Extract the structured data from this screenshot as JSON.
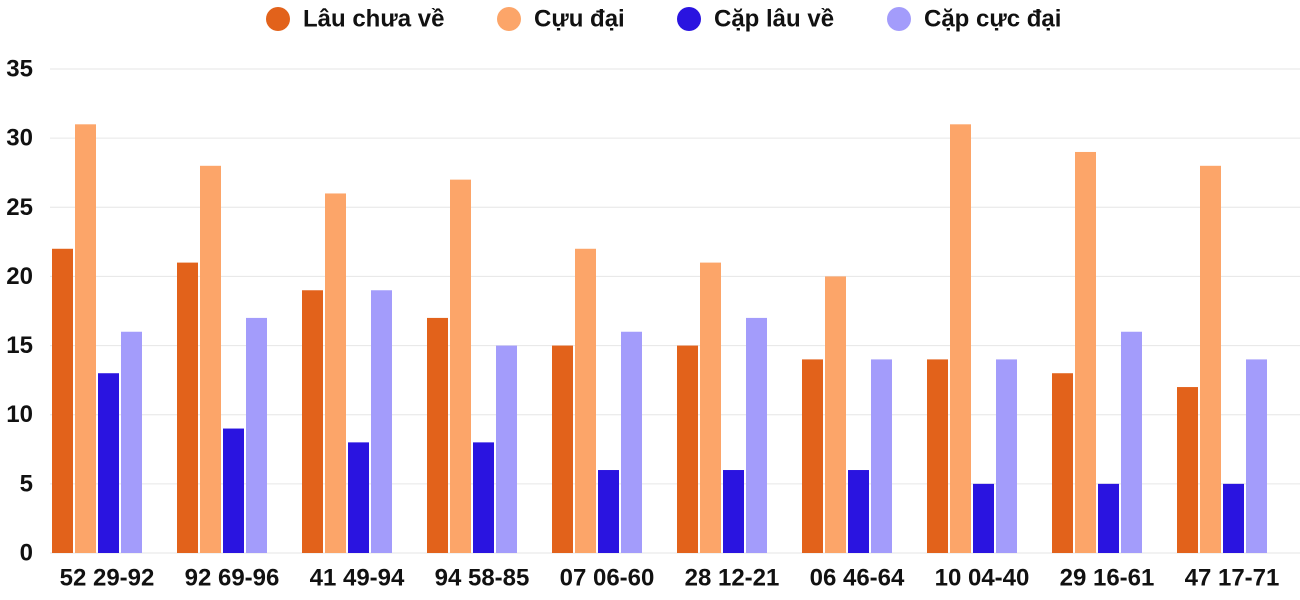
{
  "chart_data": {
    "type": "bar",
    "title": "",
    "xlabel": "",
    "ylabel": "",
    "ylim": [
      0,
      35
    ],
    "yticks": [
      0,
      5,
      10,
      15,
      20,
      25,
      30,
      35
    ],
    "grid": "horizontal",
    "legend_position": "top-center",
    "categories": [
      "52 29-92",
      "92 69-96",
      "41 49-94",
      "94 58-85",
      "07 06-60",
      "28 12-21",
      "06 46-64",
      "10 04-40",
      "29 16-61",
      "47 17-71"
    ],
    "series": [
      {
        "name": "Lâu chưa về",
        "color": "#e2621b",
        "values": [
          22,
          21,
          19,
          17,
          15,
          15,
          14,
          14,
          13,
          12
        ]
      },
      {
        "name": "Cựu đại",
        "color": "#fca569",
        "values": [
          31,
          28,
          26,
          27,
          22,
          21,
          20,
          31,
          29,
          28
        ]
      },
      {
        "name": "Cặp lâu về",
        "color": "#2a14e0",
        "values": [
          13,
          9,
          8,
          8,
          6,
          6,
          6,
          5,
          5,
          5
        ]
      },
      {
        "name": "Cặp cực đại",
        "color": "#a39cfb",
        "values": [
          16,
          17,
          19,
          15,
          16,
          17,
          14,
          14,
          16,
          14
        ]
      }
    ]
  }
}
